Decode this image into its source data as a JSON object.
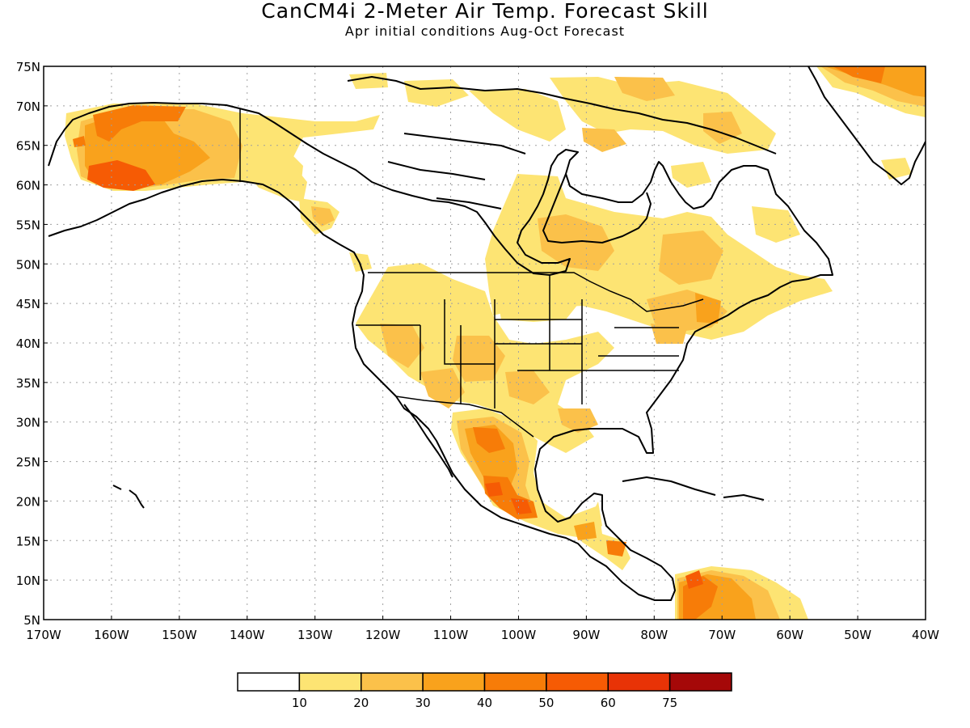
{
  "title": "CanCM4i 2-Meter Air Temp. Forecast Skill",
  "subtitle": "Apr initial conditions  Aug-Oct Forecast",
  "map": {
    "lon_range": [
      -170,
      -40
    ],
    "lat_range": [
      5,
      75
    ],
    "lat_labels": [
      "5N",
      "10N",
      "15N",
      "20N",
      "25N",
      "30N",
      "35N",
      "40N",
      "45N",
      "50N",
      "55N",
      "60N",
      "65N",
      "70N",
      "75N"
    ],
    "lon_labels": [
      "170W",
      "160W",
      "150W",
      "140W",
      "130W",
      "120W",
      "110W",
      "100W",
      "90W",
      "80W",
      "70W",
      "60W",
      "50W",
      "40W"
    ],
    "grid": "dotted"
  },
  "legend": {
    "colors": [
      "#ffffff",
      "#fde473",
      "#fbc14a",
      "#f9a21c",
      "#f77c08",
      "#f65b04",
      "#e83306",
      "#a50808"
    ],
    "labels": [
      "10",
      "20",
      "30",
      "40",
      "50",
      "60",
      "75"
    ]
  },
  "colors": {
    "band1": "#fde473",
    "band2": "#fbc14a",
    "band3": "#f9a21c",
    "band4": "#f77c08",
    "band5": "#f65b04",
    "band6": "#e83306"
  }
}
